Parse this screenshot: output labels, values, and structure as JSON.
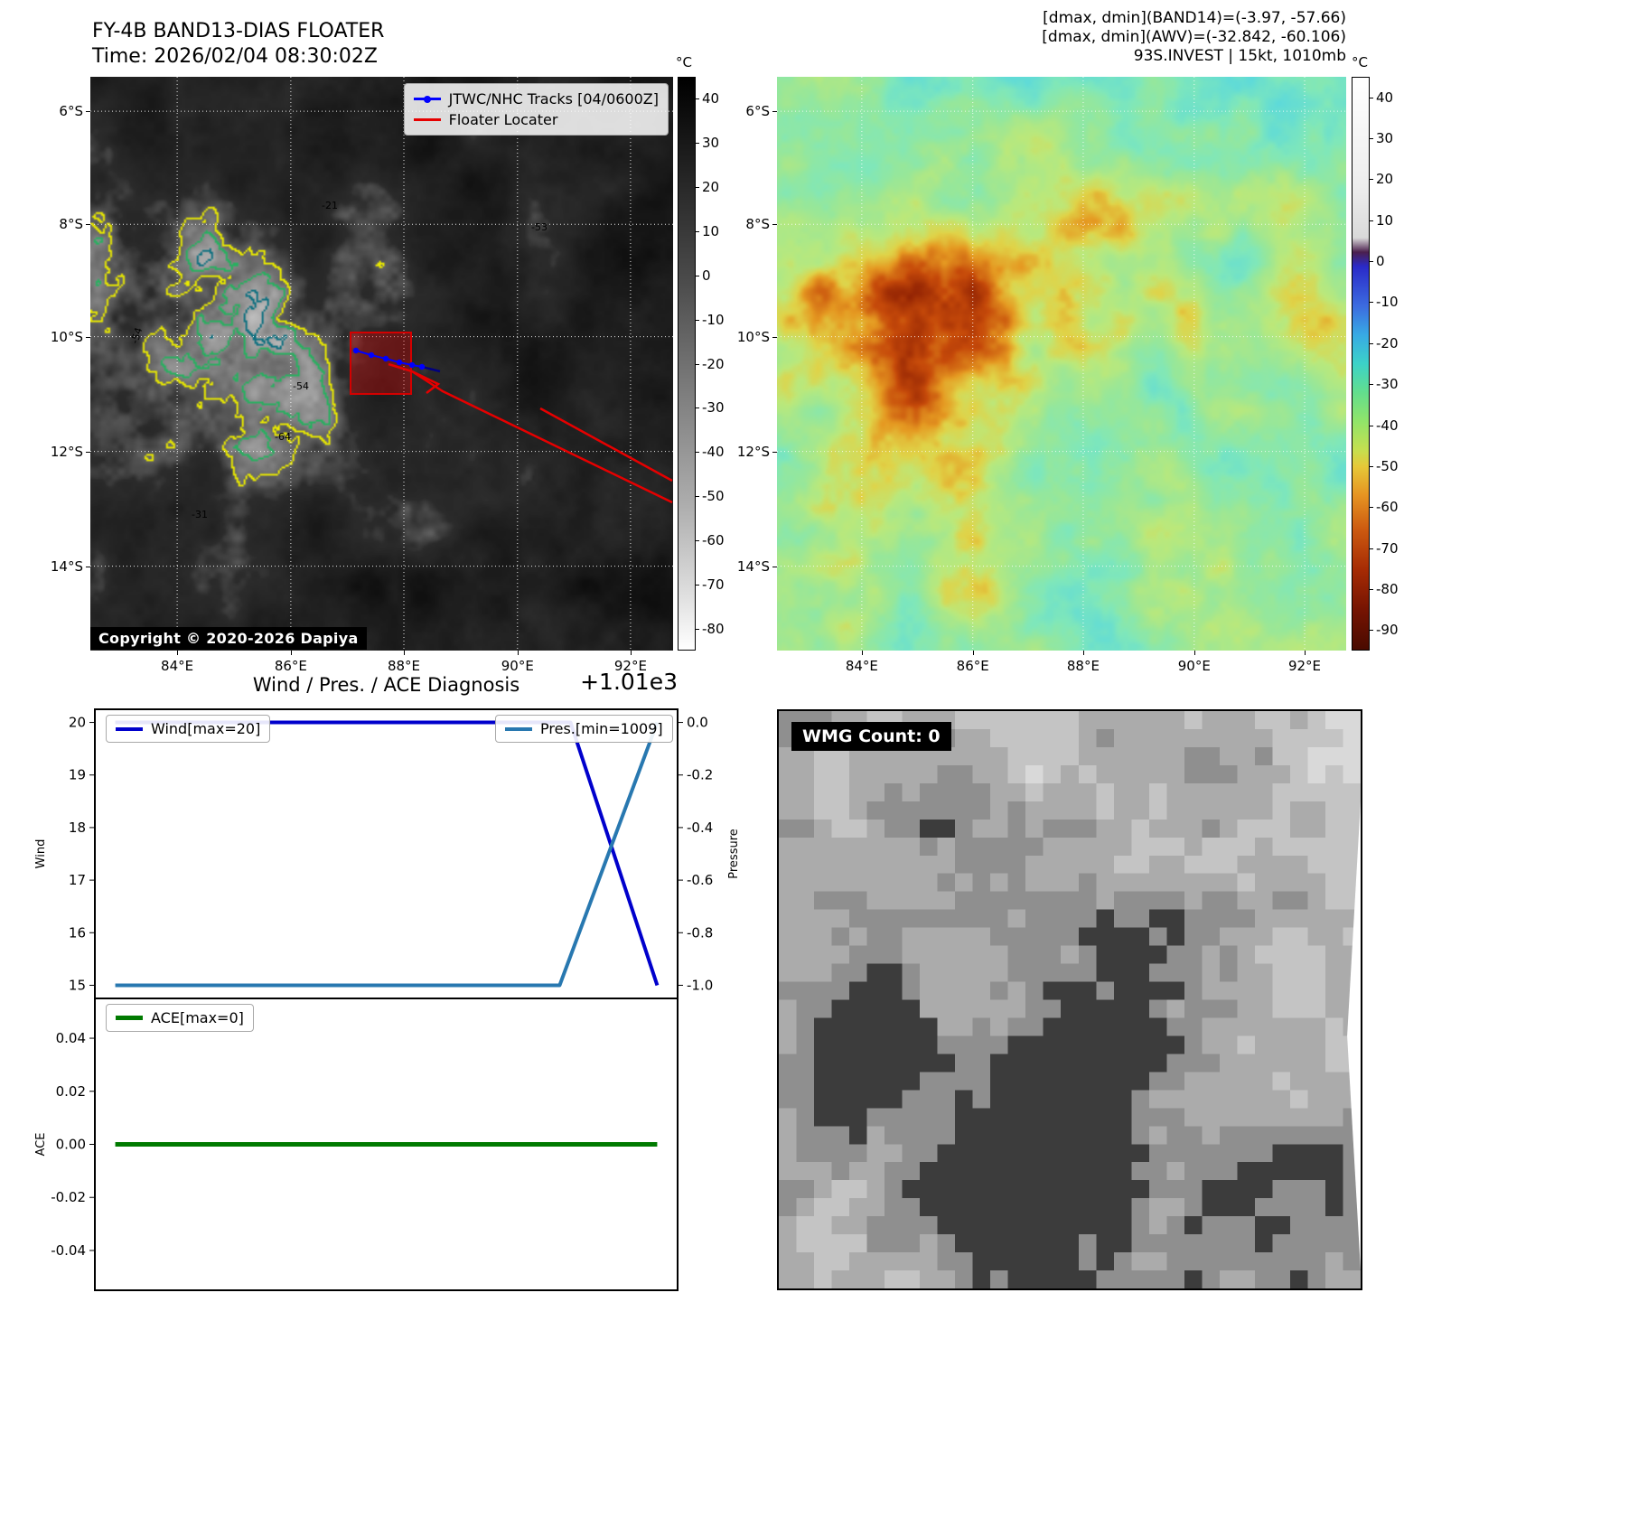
{
  "colors": {
    "track_blue": "#0000ff",
    "track_navy": "#000080",
    "floater_red": "#e60000",
    "wind_blue": "#0000cc",
    "pressure_steel": "#2878b0",
    "ace_green": "#007a00"
  },
  "panel1": {
    "title": "FY-4B BAND13-DIAS FLOATER",
    "subtitle": "Time: 2026/02/04 08:30:02Z",
    "legend": [
      {
        "label": "JTWC/NHC Tracks [04/0600Z]",
        "color": "#0000ff",
        "marker": "line-dot"
      },
      {
        "label": "Floater Locater",
        "color": "#e60000",
        "marker": "line"
      }
    ],
    "colorbar_unit": "°C",
    "colorbar_range": [
      45,
      -85
    ],
    "colorbar_ticks": [
      "40",
      "30",
      "20",
      "10",
      "0",
      "-10",
      "-20",
      "-30",
      "-40",
      "-50",
      "-60",
      "-70",
      "-80"
    ],
    "x_ticks": [
      "84°E",
      "86°E",
      "88°E",
      "90°E",
      "92°E"
    ],
    "y_ticks": [
      "6°S",
      "8°S",
      "10°S",
      "12°S",
      "14°S"
    ],
    "contour_labels": [
      "-54",
      "-54",
      "-64",
      "-31",
      "-21",
      "-53"
    ],
    "copyright": "Copyright © 2020-2026 Dapiya"
  },
  "panel2": {
    "annotations": [
      "[dmax, dmin](BAND14)=(-3.97, -57.66)",
      "[dmax, dmin](AWV)=(-32.842, -60.106)",
      "93S.INVEST | 15kt, 1010mb"
    ],
    "colorbar_unit": "°C",
    "colorbar_range": [
      45,
      -95
    ],
    "colorbar_ticks": [
      "40",
      "30",
      "20",
      "10",
      "0",
      "-10",
      "-20",
      "-30",
      "-40",
      "-50",
      "-60",
      "-70",
      "-80",
      "-90"
    ],
    "x_ticks": [
      "84°E",
      "86°E",
      "88°E",
      "90°E",
      "92°E"
    ],
    "y_ticks": [
      "6°S",
      "8°S",
      "10°S",
      "12°S",
      "14°S"
    ]
  },
  "panel3": {
    "title": "Wind / Pres. / ACE Diagnosis",
    "offset_label": "+1.01e3"
  },
  "panel4": {
    "badge": "WMG Count: 0"
  },
  "chart_data": [
    {
      "type": "line",
      "title": "Wind / Pres. / ACE Diagnosis",
      "left_axis": {
        "label": "Wind",
        "range": [
          14.75,
          20.25
        ],
        "ticks": [
          "20",
          "19",
          "18",
          "17",
          "16",
          "15"
        ]
      },
      "right_axis": {
        "label": "Pressure",
        "range": [
          -1.05,
          0.05
        ],
        "ticks": [
          "0.0",
          "-0.2",
          "-0.4",
          "-0.6",
          "-0.8",
          "-1.0"
        ],
        "offset_text": "+1.01e3"
      },
      "series": [
        {
          "name": "Wind[max=20]",
          "axis": "left",
          "color_key": "wind_blue",
          "width": 4,
          "points": [
            [
              0,
              20
            ],
            [
              0.84,
              20
            ],
            [
              1,
              15
            ]
          ]
        },
        {
          "name": "Pres.[min=1009]",
          "axis": "right",
          "color_key": "pressure_steel",
          "width": 4,
          "points": [
            [
              0,
              -1.0
            ],
            [
              0.82,
              -1.0
            ],
            [
              1,
              0.0
            ]
          ]
        }
      ]
    },
    {
      "type": "line",
      "left_axis": {
        "label": "ACE",
        "range": [
          -0.055,
          0.055
        ],
        "ticks": [
          "0.04",
          "0.02",
          "0.00",
          "-0.02",
          "-0.04"
        ]
      },
      "series": [
        {
          "name": "ACE[max=0]",
          "axis": "left",
          "color_key": "ace_green",
          "width": 5,
          "points": [
            [
              0,
              0
            ],
            [
              1,
              0
            ]
          ]
        }
      ]
    }
  ]
}
